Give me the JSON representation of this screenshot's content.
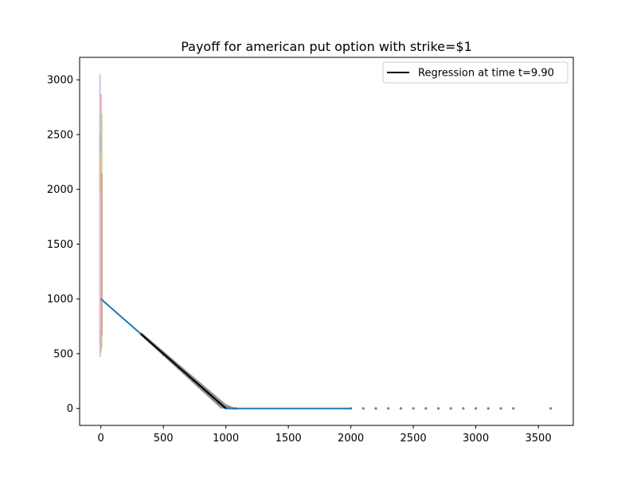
{
  "chart_data": {
    "type": "line",
    "title": "Payoff for american put option with strike=$1",
    "xlabel": "",
    "ylabel": "",
    "xlim": [
      -170,
      3780
    ],
    "ylim": [
      -155,
      3205
    ],
    "xticks": [
      0,
      500,
      1000,
      1500,
      2000,
      2500,
      3000,
      3500
    ],
    "yticks": [
      0,
      500,
      1000,
      1500,
      2000,
      2500,
      3000
    ],
    "grid": false,
    "legend": {
      "position": "top-right",
      "entries": [
        "Regression at time t=9.90"
      ]
    },
    "series": [
      {
        "kind": "line",
        "color": "#1f77b4",
        "x": [
          0,
          1000,
          2000
        ],
        "y": [
          1000,
          0,
          0
        ]
      },
      {
        "kind": "scatter",
        "color": "#808080",
        "x": [
          320,
          400,
          450,
          500,
          540,
          580,
          620,
          660,
          700,
          740,
          780,
          820,
          860,
          900,
          940,
          980,
          1020,
          1060,
          1080,
          2000,
          2100,
          2200,
          2300,
          2400,
          2500,
          2600,
          2700,
          2800,
          2900,
          3000,
          3100,
          3200,
          3300,
          3600
        ],
        "y": [
          680,
          600,
          550,
          490,
          460,
          420,
          370,
          330,
          290,
          250,
          210,
          170,
          130,
          90,
          50,
          20,
          5,
          0,
          0,
          0,
          0,
          0,
          0,
          0,
          0,
          0,
          0,
          0,
          0,
          0,
          0,
          0,
          0,
          0
        ]
      },
      {
        "name": "Regression at time t=9.90",
        "kind": "line",
        "color": "#000000",
        "x": [
          320,
          1000
        ],
        "y": [
          680,
          0
        ]
      },
      {
        "kind": "vertical-band",
        "color": "#aec7e8",
        "x": [
          0,
          0
        ],
        "y": [
          470,
          3050
        ]
      }
    ]
  }
}
